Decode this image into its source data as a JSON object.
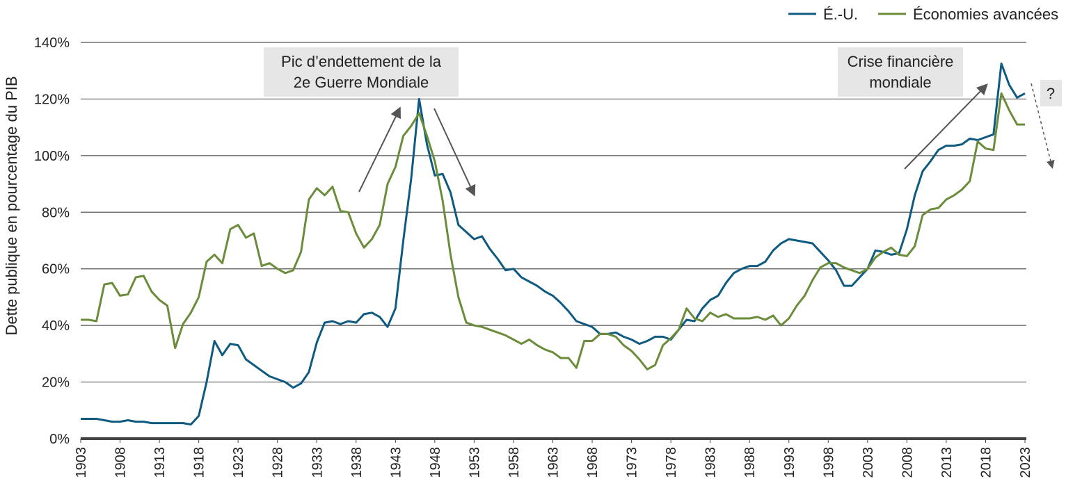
{
  "chart_data": {
    "type": "line",
    "y_label": "Dette publique en pourcentage du PIB",
    "annotations": [
      [
        "Pic d’endettement de la",
        "2e Guerre Mondiale"
      ],
      [
        "Crise financière",
        "mondiale"
      ],
      [
        "?"
      ]
    ],
    "xlim": [
      1903,
      2023
    ],
    "xticks": [
      1903,
      1908,
      1913,
      1918,
      1923,
      1928,
      1933,
      1938,
      1943,
      1948,
      1953,
      1958,
      1963,
      1968,
      1973,
      1978,
      1983,
      1988,
      1993,
      1998,
      2003,
      2008,
      2013,
      2018,
      2023
    ],
    "ylim": [
      0,
      140
    ],
    "yticks": [
      {
        "value": 0,
        "label": "0%"
      },
      {
        "value": 20,
        "label": "20%"
      },
      {
        "value": 40,
        "label": "40%"
      },
      {
        "value": 60,
        "label": "60%"
      },
      {
        "value": 80,
        "label": "80%"
      },
      {
        "value": 100,
        "label": "100%"
      },
      {
        "value": 120,
        "label": "120%"
      },
      {
        "value": 140,
        "label": "140%"
      }
    ],
    "grid": true,
    "legend": "top-right",
    "x": [
      1903,
      1904,
      1905,
      1906,
      1907,
      1908,
      1909,
      1910,
      1911,
      1912,
      1913,
      1914,
      1915,
      1916,
      1917,
      1918,
      1919,
      1920,
      1921,
      1922,
      1923,
      1924,
      1925,
      1926,
      1927,
      1928,
      1929,
      1930,
      1931,
      1932,
      1933,
      1934,
      1935,
      1936,
      1937,
      1938,
      1939,
      1940,
      1941,
      1942,
      1943,
      1944,
      1945,
      1946,
      1947,
      1948,
      1949,
      1950,
      1951,
      1952,
      1953,
      1954,
      1955,
      1956,
      1957,
      1958,
      1959,
      1960,
      1961,
      1962,
      1963,
      1964,
      1965,
      1966,
      1967,
      1968,
      1969,
      1970,
      1971,
      1972,
      1973,
      1974,
      1975,
      1976,
      1977,
      1978,
      1979,
      1980,
      1981,
      1982,
      1983,
      1984,
      1985,
      1986,
      1987,
      1988,
      1989,
      1990,
      1991,
      1992,
      1993,
      1994,
      1995,
      1996,
      1997,
      1998,
      1999,
      2000,
      2001,
      2002,
      2003,
      2004,
      2005,
      2006,
      2007,
      2008,
      2009,
      2010,
      2011,
      2012,
      2013,
      2014,
      2015,
      2016,
      2017,
      2018,
      2019,
      2020,
      2021,
      2022,
      2023
    ],
    "series": [
      {
        "name": "É.-U.",
        "color": "#0e5a80",
        "values": [
          7,
          7,
          7,
          6.5,
          6,
          6,
          6.5,
          6,
          6,
          5.5,
          5.5,
          5.5,
          5.5,
          5.5,
          5,
          8,
          20,
          34.5,
          29.5,
          33.5,
          33,
          28,
          26,
          24,
          22,
          21,
          20,
          18,
          19.5,
          23.5,
          34,
          41,
          41.5,
          40.5,
          41.5,
          41,
          44,
          44.5,
          43,
          39.5,
          46,
          70,
          92,
          120,
          104,
          93,
          93.5,
          87,
          75.5,
          73,
          70.5,
          71.5,
          67,
          63.5,
          59.5,
          60,
          57,
          55.5,
          54,
          52,
          50.5,
          48,
          45,
          41.5,
          40.5,
          39.5,
          37,
          37,
          37.5,
          36,
          35,
          33.5,
          34.5,
          36,
          36,
          35,
          38.5,
          42,
          41.5,
          46,
          49,
          50.5,
          55,
          58.5,
          60,
          61,
          61,
          62.5,
          66.5,
          69,
          70.5,
          70,
          69.5,
          69,
          66,
          63,
          59.5,
          54,
          54,
          57,
          60,
          66.5,
          66,
          65,
          65.5,
          74,
          86,
          94.5,
          98,
          102,
          103.5,
          103.5,
          104,
          106,
          105.5,
          106.5,
          107.5,
          132.5,
          125,
          120.5,
          122
        ]
      },
      {
        "name": "Économies avancées",
        "color": "#6b8c3a",
        "values": [
          42,
          42,
          41.5,
          54.5,
          55,
          50.5,
          51,
          57,
          57.5,
          52,
          49,
          47,
          32,
          40.5,
          44.5,
          50,
          62.5,
          65,
          62,
          74,
          75.5,
          71,
          72.5,
          61,
          62,
          60,
          58.5,
          59.5,
          66,
          84.5,
          88.5,
          86,
          89,
          80.5,
          80,
          72.5,
          67.5,
          70.5,
          75.5,
          90,
          96,
          107,
          110.5,
          115,
          107,
          98,
          84,
          65,
          50,
          41,
          40,
          39.5,
          38.5,
          37.5,
          36.5,
          35,
          33.5,
          35,
          33,
          31.5,
          30.5,
          28.5,
          28.5,
          25,
          34.5,
          34.5,
          37,
          37,
          36,
          33,
          31,
          28,
          24.5,
          26,
          33,
          35.5,
          38.5,
          46,
          42.5,
          41.5,
          44.5,
          43,
          44,
          42.5,
          42.5,
          42.5,
          43,
          42,
          43.5,
          40,
          42.5,
          47,
          50.5,
          56,
          60.5,
          62,
          62,
          60.5,
          59.5,
          58.5,
          60,
          64,
          66,
          67.5,
          65,
          64.5,
          68,
          79,
          81,
          81.5,
          84.5,
          86,
          88,
          91,
          105,
          102.5,
          102,
          122,
          116,
          111,
          111
        ]
      }
    ]
  }
}
